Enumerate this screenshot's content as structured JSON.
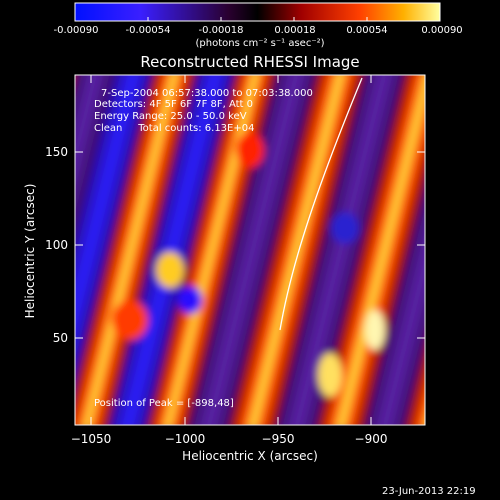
{
  "colorbar": {
    "ticks": [
      "-0.00090",
      "-0.00054",
      "-0.00018",
      "0.00018",
      "0.00054",
      "0.00090"
    ],
    "unit_label": "(photons cm⁻² s⁻¹ asec⁻²)"
  },
  "plot": {
    "title": "Reconstructed RHESSI Image",
    "xlabel": "Heliocentric X (arcsec)",
    "ylabel": "Heliocentric Y (arcsec)",
    "xticks": [
      "−1050",
      "−1000",
      "−950",
      "−900"
    ],
    "yticks": [
      "150",
      "100",
      "50"
    ],
    "annotations": {
      "time_range": "7-Sep-2004 06:57:38.000 to 07:03:38.000",
      "detectors": "Detectors: 4F 5F 6F 7F 8F, Att 0",
      "energy": "Energy Range: 25.0 - 50.0 keV",
      "clean": "Clean     Total counts: 6.13E+04",
      "peak": "Position of Peak = [-898,48]"
    }
  },
  "footer": {
    "timestamp": "23-Jun-2013 22:19"
  },
  "colors": {
    "background": "#000000",
    "cb_low": "#0000ff",
    "cb_mid": "#000000",
    "cb_high": "#ffff99"
  }
}
